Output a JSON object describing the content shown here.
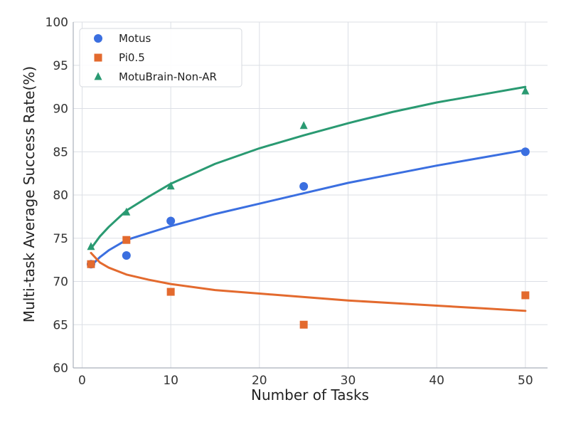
{
  "chart_data": {
    "type": "scatter",
    "title": "",
    "xlabel": "Number of Tasks",
    "ylabel": "Multi-task Average Success Rate(%)",
    "xlim": [
      -1,
      52.5
    ],
    "ylim": [
      60,
      100
    ],
    "xticks": [
      0,
      10,
      20,
      30,
      40,
      50
    ],
    "yticks": [
      60,
      65,
      70,
      75,
      80,
      85,
      90,
      95,
      100
    ],
    "grid": true,
    "legend_position": "top-left",
    "series": [
      {
        "name": "Motus",
        "marker": "circle",
        "color": "#3b6fe0",
        "x": [
          1,
          5,
          10,
          25,
          50
        ],
        "y": [
          72,
          73,
          77,
          81,
          85
        ],
        "fit_curve": {
          "x": [
            1,
            2,
            3,
            5,
            7.5,
            10,
            15,
            20,
            25,
            30,
            35,
            40,
            45,
            50
          ],
          "y": [
            71.8,
            72.8,
            73.6,
            74.8,
            75.6,
            76.4,
            77.8,
            79.0,
            80.2,
            81.4,
            82.4,
            83.4,
            84.3,
            85.2
          ]
        }
      },
      {
        "name": "Pi0.5",
        "marker": "square",
        "color": "#e36a2e",
        "x": [
          1,
          5,
          10,
          25,
          50
        ],
        "y": [
          72,
          74.8,
          68.8,
          65,
          68.4
        ],
        "fit_curve": {
          "x": [
            1,
            2,
            3,
            5,
            7.5,
            10,
            15,
            20,
            25,
            30,
            35,
            40,
            45,
            50
          ],
          "y": [
            73.3,
            72.2,
            71.6,
            70.8,
            70.2,
            69.7,
            69.0,
            68.6,
            68.2,
            67.8,
            67.5,
            67.2,
            66.9,
            66.6
          ]
        }
      },
      {
        "name": "MotuBrain-Non-AR",
        "marker": "triangle",
        "color": "#2a9a72",
        "x": [
          1,
          5,
          10,
          25,
          50
        ],
        "y": [
          74,
          78,
          81,
          88,
          92
        ],
        "fit_curve": {
          "x": [
            1,
            2,
            3,
            5,
            7.5,
            10,
            15,
            20,
            25,
            30,
            35,
            40,
            45,
            50
          ],
          "y": [
            73.8,
            75.2,
            76.3,
            78.2,
            79.8,
            81.3,
            83.6,
            85.4,
            86.9,
            88.3,
            89.6,
            90.7,
            91.6,
            92.5
          ]
        }
      }
    ]
  }
}
